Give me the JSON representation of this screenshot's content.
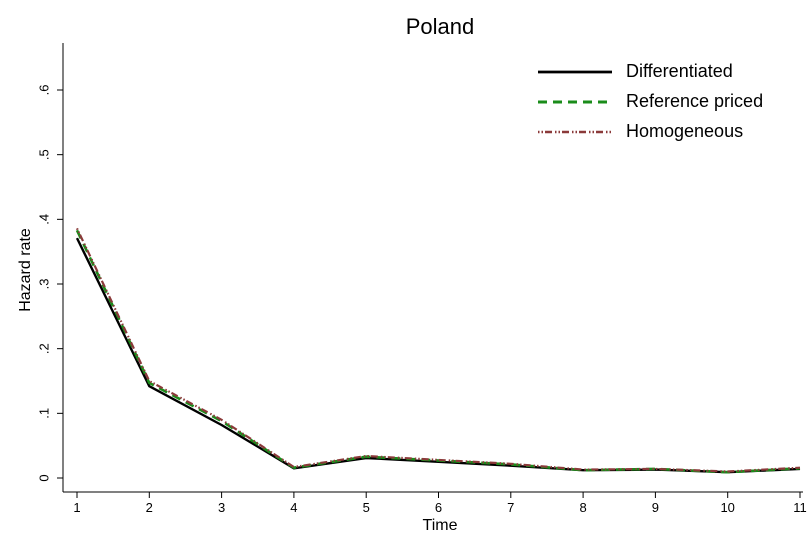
{
  "chart_data": {
    "type": "line",
    "title": "Poland",
    "xlabel": "Time",
    "ylabel": "Hazard rate",
    "x": [
      1,
      2,
      3,
      4,
      5,
      6,
      7,
      8,
      9,
      10,
      11
    ],
    "xlim": [
      1,
      11
    ],
    "ylim": [
      0,
      0.6
    ],
    "x_ticks": [
      "1",
      "2",
      "3",
      "4",
      "5",
      "6",
      "7",
      "8",
      "9",
      "10",
      "11"
    ],
    "y_ticks": [
      {
        "value": 0,
        "label": "0"
      },
      {
        "value": 0.1,
        "label": ".1"
      },
      {
        "value": 0.2,
        "label": ".2"
      },
      {
        "value": 0.3,
        "label": ".3"
      },
      {
        "value": 0.4,
        "label": ".4"
      },
      {
        "value": 0.5,
        "label": ".5"
      },
      {
        "value": 0.6,
        "label": ".6"
      }
    ],
    "grid": false,
    "legend_position": "top-right",
    "series": [
      {
        "name": "Differentiated",
        "color": "#000000",
        "style": "solid",
        "values": [
          0.371,
          0.142,
          0.082,
          0.015,
          0.031,
          0.025,
          0.019,
          0.012,
          0.013,
          0.009,
          0.014
        ]
      },
      {
        "name": "Reference priced",
        "color": "#1a8c1a",
        "style": "dashed",
        "values": [
          0.383,
          0.147,
          0.088,
          0.016,
          0.033,
          0.027,
          0.021,
          0.012,
          0.014,
          0.009,
          0.015
        ]
      },
      {
        "name": "Homogeneous",
        "color": "#8b3a3a",
        "style": "dash-dot",
        "values": [
          0.386,
          0.15,
          0.09,
          0.017,
          0.034,
          0.028,
          0.022,
          0.013,
          0.014,
          0.01,
          0.016
        ]
      }
    ]
  }
}
